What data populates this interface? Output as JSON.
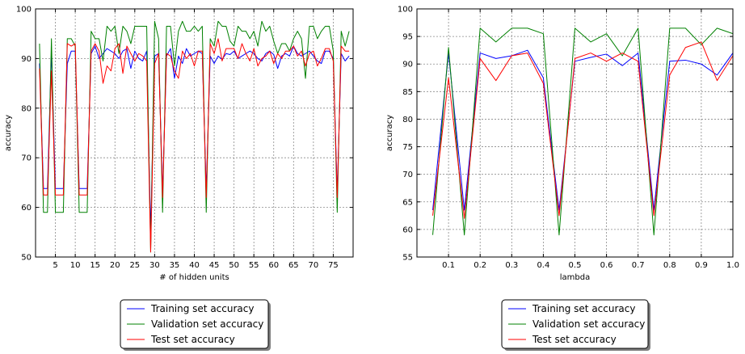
{
  "chart_data": [
    {
      "type": "line",
      "xlabel": "# of hidden units",
      "ylabel": "accuracy",
      "xlim": [
        0,
        80
      ],
      "ylim": [
        50,
        100
      ],
      "xticks": [
        5,
        10,
        15,
        20,
        25,
        30,
        35,
        40,
        45,
        50,
        55,
        60,
        65,
        70,
        75
      ],
      "yticks": [
        50,
        60,
        70,
        80,
        90,
        100
      ],
      "grid": true,
      "legend_position": "below",
      "x": [
        1,
        2,
        3,
        4,
        5,
        6,
        7,
        8,
        9,
        10,
        11,
        12,
        13,
        14,
        15,
        16,
        17,
        18,
        19,
        20,
        21,
        22,
        23,
        24,
        25,
        26,
        27,
        28,
        29,
        30,
        31,
        32,
        33,
        34,
        35,
        36,
        37,
        38,
        39,
        40,
        41,
        42,
        43,
        44,
        45,
        46,
        47,
        48,
        49,
        50,
        51,
        52,
        53,
        54,
        55,
        56,
        57,
        58,
        59,
        60,
        61,
        62,
        63,
        64,
        65,
        66,
        67,
        68,
        69,
        70,
        71,
        72,
        73,
        74,
        75,
        76,
        77,
        78,
        79
      ],
      "series": [
        {
          "name": "Training set accuracy",
          "color": "#0000ff",
          "values": [
            89,
            63.8,
            63.8,
            91.5,
            63.8,
            63.8,
            63.8,
            89,
            91.5,
            91.5,
            63.8,
            63.8,
            63.8,
            91,
            92.5,
            90,
            91,
            92,
            91.5,
            91,
            90,
            91.5,
            92,
            88,
            91.5,
            90,
            89.5,
            91.5,
            55,
            90.5,
            91,
            63,
            90.5,
            92,
            86,
            90.5,
            89,
            92,
            90.5,
            91,
            91.5,
            91,
            63.5,
            90.5,
            89,
            90.5,
            89.8,
            91,
            90.8,
            91.5,
            90,
            90.5,
            91,
            91.5,
            91,
            90,
            89.5,
            91,
            91.5,
            90.8,
            88,
            90.5,
            91,
            90.5,
            92.5,
            91,
            90.5,
            91,
            91.5,
            90.5,
            89.5,
            89,
            91.5,
            91.5,
            90,
            63,
            91,
            89.5,
            90.5
          ]
        },
        {
          "name": "Validation set accuracy",
          "color": "#008000",
          "values": [
            93,
            59,
            59,
            94,
            59,
            59,
            59,
            94,
            94,
            92.5,
            59,
            59,
            59,
            95.5,
            94,
            94,
            89.5,
            96.5,
            95.5,
            96.5,
            91,
            96.5,
            95.5,
            93,
            96.5,
            96.5,
            96.5,
            96.5,
            51,
            97.5,
            94,
            59,
            96.5,
            96.5,
            88.5,
            95.5,
            97.5,
            95.5,
            95.5,
            96.5,
            95.5,
            96.5,
            59,
            94,
            92.5,
            97.5,
            96.5,
            96.5,
            93.5,
            92.5,
            96.5,
            95.5,
            95.5,
            94,
            95.5,
            92.5,
            97.5,
            95.5,
            96.5,
            93.5,
            91,
            93,
            93,
            91.5,
            94,
            95.5,
            94,
            86,
            96.5,
            96.5,
            94,
            95.5,
            96.5,
            96.5,
            91.5,
            59,
            95.5,
            92.5,
            95.5
          ]
        },
        {
          "name": "Test set accuracy",
          "color": "#ff0000",
          "values": [
            88,
            62.5,
            62.5,
            87.5,
            62.5,
            62.5,
            62.5,
            93,
            92.5,
            93,
            62.5,
            62.5,
            62.5,
            91.5,
            93,
            91.5,
            85,
            88.5,
            87.5,
            92,
            93,
            87,
            92.5,
            91,
            89.5,
            91,
            90.5,
            89.5,
            51,
            89,
            91,
            62,
            91,
            90.5,
            87.5,
            86,
            91.5,
            90,
            91,
            88.5,
            91.5,
            91.5,
            62,
            93,
            91,
            94,
            89.5,
            92,
            92,
            92,
            90,
            93,
            91,
            89.5,
            92,
            88.5,
            90,
            90.5,
            91.5,
            89,
            91,
            90,
            91.5,
            91.5,
            92.5,
            90.5,
            91.5,
            88.5,
            91,
            91.5,
            88.5,
            90,
            92,
            92,
            89.5,
            62,
            92.5,
            91.5,
            91.5
          ]
        }
      ]
    },
    {
      "type": "line",
      "xlabel": "lambda",
      "ylabel": "accuracy",
      "xlim": [
        0,
        1.0
      ],
      "ylim": [
        55,
        100
      ],
      "xticks": [
        0.1,
        0.2,
        0.3,
        0.4,
        0.5,
        0.6,
        0.7,
        0.8,
        0.9,
        1.0
      ],
      "xtick_labels": [
        "0.1",
        "0.2",
        "0.3",
        "0.4",
        "0.5",
        "0.6",
        "0.7",
        "0.8",
        "0.9",
        "1.0"
      ],
      "yticks": [
        55,
        60,
        65,
        70,
        75,
        80,
        85,
        90,
        95,
        100
      ],
      "grid": true,
      "legend_position": "below",
      "x": [
        0.05,
        0.1,
        0.15,
        0.2,
        0.25,
        0.3,
        0.35,
        0.4,
        0.45,
        0.5,
        0.55,
        0.6,
        0.65,
        0.7,
        0.75,
        0.8,
        0.85,
        0.9,
        0.95,
        1.0
      ],
      "series": [
        {
          "name": "Training set accuracy",
          "color": "#0000ff",
          "values": [
            63.5,
            92,
            63.5,
            92,
            91,
            91.5,
            92.5,
            87.5,
            63.5,
            90.5,
            91.2,
            91.8,
            89.7,
            92,
            63.5,
            90.5,
            90.7,
            90,
            88,
            92
          ]
        },
        {
          "name": "Validation set accuracy",
          "color": "#008000",
          "values": [
            59,
            93,
            59,
            96.5,
            94,
            96.5,
            96.5,
            95.5,
            59,
            96.5,
            94,
            95.5,
            91.5,
            96.5,
            59,
            96.5,
            96.5,
            93.5,
            96.5,
            95.5
          ]
        },
        {
          "name": "Test set accuracy",
          "color": "#ff0000",
          "values": [
            62.5,
            87.5,
            62,
            91,
            87,
            91.5,
            92,
            86.5,
            62.5,
            91,
            92,
            90.5,
            92,
            90.5,
            62.5,
            88,
            93,
            94,
            87,
            91.5
          ]
        }
      ]
    }
  ]
}
